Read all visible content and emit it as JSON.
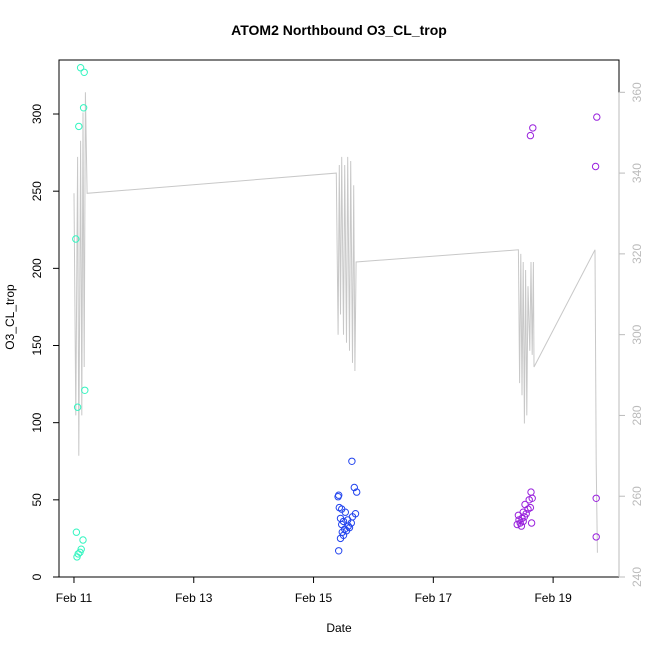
{
  "chart_data": {
    "type": "scatter",
    "title": "ATOM2 Northbound O3_CL_trop",
    "xlabel": "Date",
    "ylabel": "O3_CL_trop",
    "x_ticks": [
      {
        "day": 11,
        "label": "Feb 11"
      },
      {
        "day": 13,
        "label": "Feb 13"
      },
      {
        "day": 15,
        "label": "Feb 15"
      },
      {
        "day": 17,
        "label": "Feb 17"
      },
      {
        "day": 19,
        "label": "Feb 19"
      }
    ],
    "xlim": [
      10.75,
      20.1
    ],
    "ylim": [
      0,
      335
    ],
    "y_ticks": [
      0,
      50,
      100,
      150,
      200,
      250,
      300
    ],
    "y2lim": [
      240,
      368
    ],
    "y2_ticks": [
      240,
      260,
      280,
      300,
      320,
      340,
      360
    ],
    "series": [
      {
        "color": "#33f5c0",
        "points": [
          [
            11.05,
            13
          ],
          [
            11.07,
            15
          ],
          [
            11.1,
            16
          ],
          [
            11.12,
            18
          ],
          [
            11.15,
            24
          ],
          [
            11.04,
            29
          ],
          [
            11.06,
            110
          ],
          [
            11.18,
            121
          ],
          [
            11.03,
            219
          ],
          [
            11.08,
            292
          ],
          [
            11.16,
            304
          ],
          [
            11.11,
            330
          ],
          [
            11.17,
            327
          ]
        ]
      },
      {
        "color": "#2244ee",
        "points": [
          [
            15.42,
            17
          ],
          [
            15.45,
            25
          ],
          [
            15.5,
            27
          ],
          [
            15.48,
            29
          ],
          [
            15.55,
            30
          ],
          [
            15.52,
            31
          ],
          [
            15.6,
            32
          ],
          [
            15.58,
            33
          ],
          [
            15.47,
            34
          ],
          [
            15.63,
            35
          ],
          [
            15.5,
            36
          ],
          [
            15.57,
            37
          ],
          [
            15.45,
            38
          ],
          [
            15.65,
            39
          ],
          [
            15.7,
            41
          ],
          [
            15.53,
            42
          ],
          [
            15.47,
            44
          ],
          [
            15.43,
            45
          ],
          [
            15.41,
            52
          ],
          [
            15.42,
            53
          ],
          [
            15.72,
            55
          ],
          [
            15.68,
            58
          ],
          [
            15.64,
            75
          ]
        ]
      },
      {
        "color": "#9922dd",
        "points": [
          [
            18.4,
            34
          ],
          [
            18.45,
            35
          ],
          [
            18.5,
            36
          ],
          [
            18.43,
            37
          ],
          [
            18.48,
            38
          ],
          [
            18.52,
            39
          ],
          [
            18.42,
            40
          ],
          [
            18.55,
            41
          ],
          [
            18.5,
            42
          ],
          [
            18.47,
            33
          ],
          [
            18.58,
            44
          ],
          [
            18.62,
            45
          ],
          [
            18.53,
            47
          ],
          [
            18.6,
            50
          ],
          [
            18.65,
            51
          ],
          [
            18.63,
            55
          ],
          [
            18.64,
            35
          ],
          [
            18.62,
            286
          ],
          [
            18.66,
            291
          ],
          [
            19.72,
            26
          ],
          [
            19.72,
            51
          ],
          [
            19.71,
            266
          ],
          [
            19.73,
            298
          ]
        ]
      }
    ],
    "secondary_line": {
      "color": "#c8c8c8",
      "points": [
        [
          11.0,
          335
        ],
        [
          11.03,
          280
        ],
        [
          11.06,
          344
        ],
        [
          11.08,
          270
        ],
        [
          11.11,
          348
        ],
        [
          11.13,
          280
        ],
        [
          11.15,
          355
        ],
        [
          11.17,
          292
        ],
        [
          11.19,
          360
        ],
        [
          11.22,
          335
        ],
        [
          15.38,
          340
        ],
        [
          15.41,
          300
        ],
        [
          15.43,
          342
        ],
        [
          15.45,
          305
        ],
        [
          15.47,
          344
        ],
        [
          15.5,
          300
        ],
        [
          15.52,
          342
        ],
        [
          15.55,
          298
        ],
        [
          15.57,
          344
        ],
        [
          15.6,
          296
        ],
        [
          15.62,
          343
        ],
        [
          15.65,
          293
        ],
        [
          15.67,
          337
        ],
        [
          15.69,
          291
        ],
        [
          15.71,
          318
        ],
        [
          18.42,
          321
        ],
        [
          18.44,
          288
        ],
        [
          18.46,
          320
        ],
        [
          18.48,
          285
        ],
        [
          18.5,
          318
        ],
        [
          18.52,
          278
        ],
        [
          18.54,
          316
        ],
        [
          18.56,
          280
        ],
        [
          18.58,
          312
        ],
        [
          18.61,
          296
        ],
        [
          18.63,
          318
        ],
        [
          18.65,
          295
        ],
        [
          18.67,
          318
        ],
        [
          18.68,
          292
        ],
        [
          19.7,
          321
        ],
        [
          19.72,
          268
        ],
        [
          19.74,
          246
        ]
      ]
    }
  }
}
